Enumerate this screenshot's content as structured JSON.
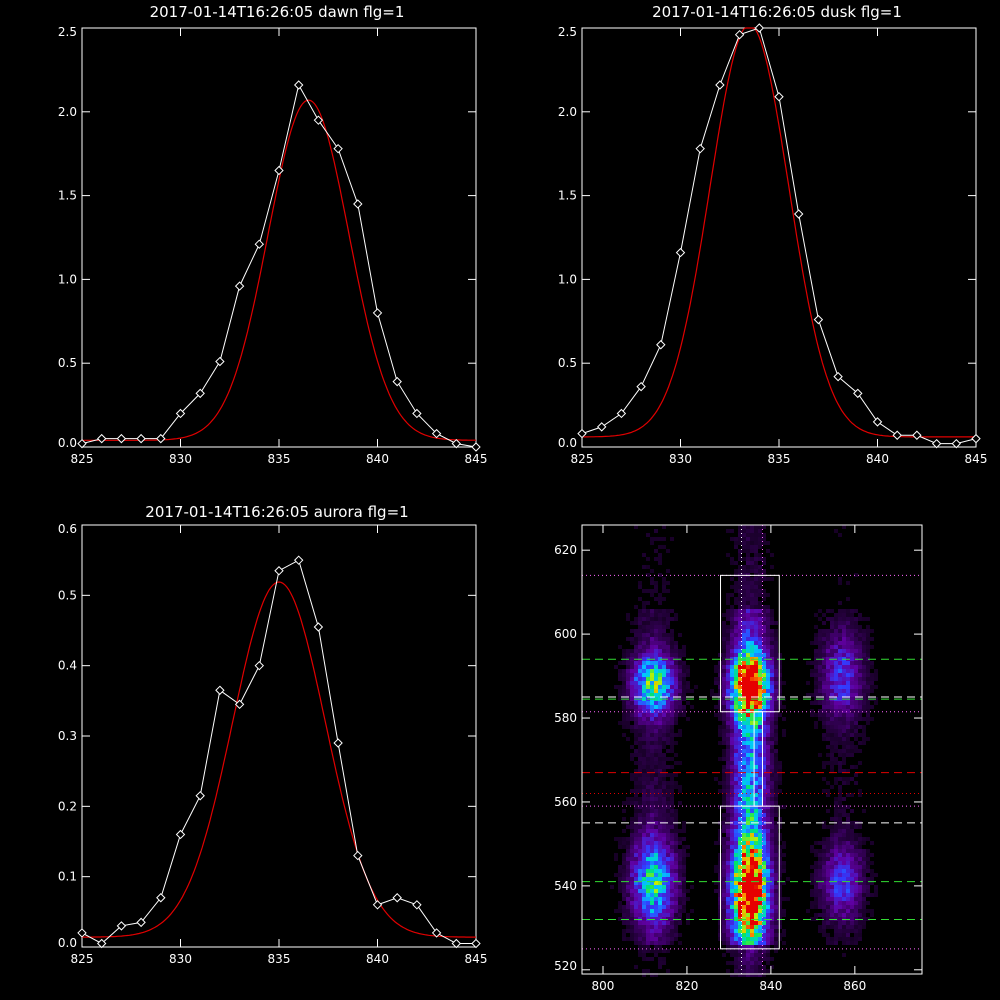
{
  "chart_data": [
    {
      "type": "line",
      "title": "2017-01-14T16:26:05 dawn flg=1",
      "xlim": [
        825,
        845
      ],
      "ylim": [
        0,
        2.5
      ],
      "xticks": [
        "825",
        "830",
        "835",
        "840",
        "845"
      ],
      "yticks": [
        "0.0",
        "0.5",
        "1.0",
        "1.5",
        "2.0",
        "2.5"
      ],
      "series": [
        {
          "role": "observed",
          "color": "#ffffff",
          "x": [
            825,
            826,
            827,
            828,
            829,
            830,
            831,
            832,
            833,
            834,
            835,
            836,
            837,
            838,
            839,
            840,
            841,
            842,
            843,
            844,
            845
          ],
          "y": [
            0.02,
            0.05,
            0.05,
            0.05,
            0.05,
            0.2,
            0.32,
            0.51,
            0.96,
            1.21,
            1.65,
            2.16,
            1.95,
            1.78,
            1.45,
            0.8,
            0.39,
            0.2,
            0.08,
            0.02,
            0.0
          ]
        },
        {
          "role": "fit",
          "color": "#e00000",
          "gaussian": {
            "amplitude": 2.03,
            "center": 836.5,
            "sigma": 2.05,
            "offset": 0.04
          }
        }
      ]
    },
    {
      "type": "line",
      "title": "2017-01-14T16:26:05 dusk flg=1",
      "xlim": [
        825,
        845
      ],
      "ylim": [
        0,
        2.5
      ],
      "xticks": [
        "825",
        "830",
        "835",
        "840",
        "845"
      ],
      "yticks": [
        "0.0",
        "0.5",
        "1.0",
        "1.5",
        "2.0",
        "2.5"
      ],
      "series": [
        {
          "role": "observed",
          "color": "#ffffff",
          "x": [
            825,
            826,
            827,
            828,
            829,
            830,
            831,
            832,
            833,
            834,
            835,
            836,
            837,
            838,
            839,
            840,
            841,
            842,
            843,
            844,
            845
          ],
          "y": [
            0.08,
            0.12,
            0.2,
            0.36,
            0.61,
            1.16,
            1.78,
            2.16,
            2.46,
            2.5,
            2.09,
            1.39,
            0.76,
            0.42,
            0.32,
            0.15,
            0.07,
            0.07,
            0.02,
            0.02,
            0.05
          ]
        },
        {
          "role": "fit",
          "color": "#e00000",
          "gaussian": {
            "amplitude": 2.46,
            "center": 833.5,
            "sigma": 2.0,
            "offset": 0.06
          }
        }
      ]
    },
    {
      "type": "line",
      "title": "2017-01-14T16:26:05 aurora flg=1",
      "xlim": [
        825,
        845
      ],
      "ylim": [
        0,
        0.6
      ],
      "xticks": [
        "825",
        "830",
        "835",
        "840",
        "845"
      ],
      "yticks": [
        "0.0",
        "0.1",
        "0.2",
        "0.3",
        "0.4",
        "0.5",
        "0.6"
      ],
      "series": [
        {
          "role": "observed",
          "color": "#ffffff",
          "x": [
            825,
            826,
            827,
            828,
            829,
            830,
            831,
            832,
            833,
            834,
            835,
            836,
            837,
            838,
            839,
            840,
            841,
            842,
            843,
            844,
            845
          ],
          "y": [
            0.02,
            0.005,
            0.03,
            0.035,
            0.07,
            0.16,
            0.215,
            0.365,
            0.345,
            0.4,
            0.535,
            0.55,
            0.455,
            0.29,
            0.13,
            0.06,
            0.07,
            0.06,
            0.02,
            0.005,
            0.005
          ]
        },
        {
          "role": "fit",
          "color": "#e00000",
          "gaussian": {
            "amplitude": 0.505,
            "center": 835.0,
            "sigma": 2.35,
            "offset": 0.014
          }
        }
      ]
    },
    {
      "type": "heatmap",
      "title": "",
      "xlim": [
        795,
        876
      ],
      "ylim": [
        519,
        626
      ],
      "xticks": [
        "800",
        "820",
        "840",
        "860"
      ],
      "yticks": [
        "520",
        "540",
        "560",
        "580",
        "600",
        "620"
      ],
      "colormap": "rainbow",
      "bands": [
        {
          "x": 812,
          "width": 3.5,
          "peaks": [
            {
              "y": 588,
              "sigma": 5,
              "amp": 0.6
            },
            {
              "y": 541,
              "sigma": 7,
              "amp": 0.55
            }
          ],
          "base": 0.08
        },
        {
          "x": 835,
          "width": 3.0,
          "peaks": [
            {
              "y": 588,
              "sigma": 5,
              "amp": 1.0
            },
            {
              "y": 538,
              "sigma": 8,
              "amp": 0.95
            },
            {
              "y": 565,
              "sigma": 25,
              "amp": 0.35
            }
          ],
          "base": 0.15
        },
        {
          "x": 857,
          "width": 3.5,
          "peaks": [
            {
              "y": 590,
              "sigma": 7,
              "amp": 0.3
            },
            {
              "y": 541,
              "sigma": 6,
              "amp": 0.3
            }
          ],
          "base": 0.04
        }
      ],
      "boxes": [
        {
          "x0": 828,
          "x1": 842,
          "y0": 581.5,
          "y1": 614,
          "color": "#ffffff"
        },
        {
          "x0": 828,
          "x1": 842,
          "y0": 525,
          "y1": 559,
          "color": "#ffffff"
        },
        {
          "x0": 836,
          "x1": 838,
          "y0": 559,
          "y1": 581.5,
          "color": "#ffffff"
        }
      ],
      "hlines": [
        {
          "y": 614,
          "color": "#ff66ff",
          "style": "dotted"
        },
        {
          "y": 594,
          "color": "#33dd33",
          "style": "dashed"
        },
        {
          "y": 585,
          "color": "#ffffff",
          "style": "dashed"
        },
        {
          "y": 584.5,
          "color": "#33dd33",
          "style": "dashed"
        },
        {
          "y": 581.5,
          "color": "#ff66ff",
          "style": "dotted"
        },
        {
          "y": 567,
          "color": "#e00000",
          "style": "dashed"
        },
        {
          "y": 562,
          "color": "#e00000",
          "style": "dotted"
        },
        {
          "y": 559,
          "color": "#ff66ff",
          "style": "dotted"
        },
        {
          "y": 555,
          "color": "#ffffff",
          "style": "dashed"
        },
        {
          "y": 541,
          "color": "#33dd33",
          "style": "dashed"
        },
        {
          "y": 532,
          "color": "#33dd33",
          "style": "dashed"
        },
        {
          "y": 525,
          "color": "#ff66ff",
          "style": "dotted"
        }
      ],
      "vlines": [
        {
          "x": 833,
          "color": "#ffffff",
          "style": "dotted"
        },
        {
          "x": 838,
          "color": "#ff66ff",
          "style": "dotted"
        }
      ]
    }
  ]
}
